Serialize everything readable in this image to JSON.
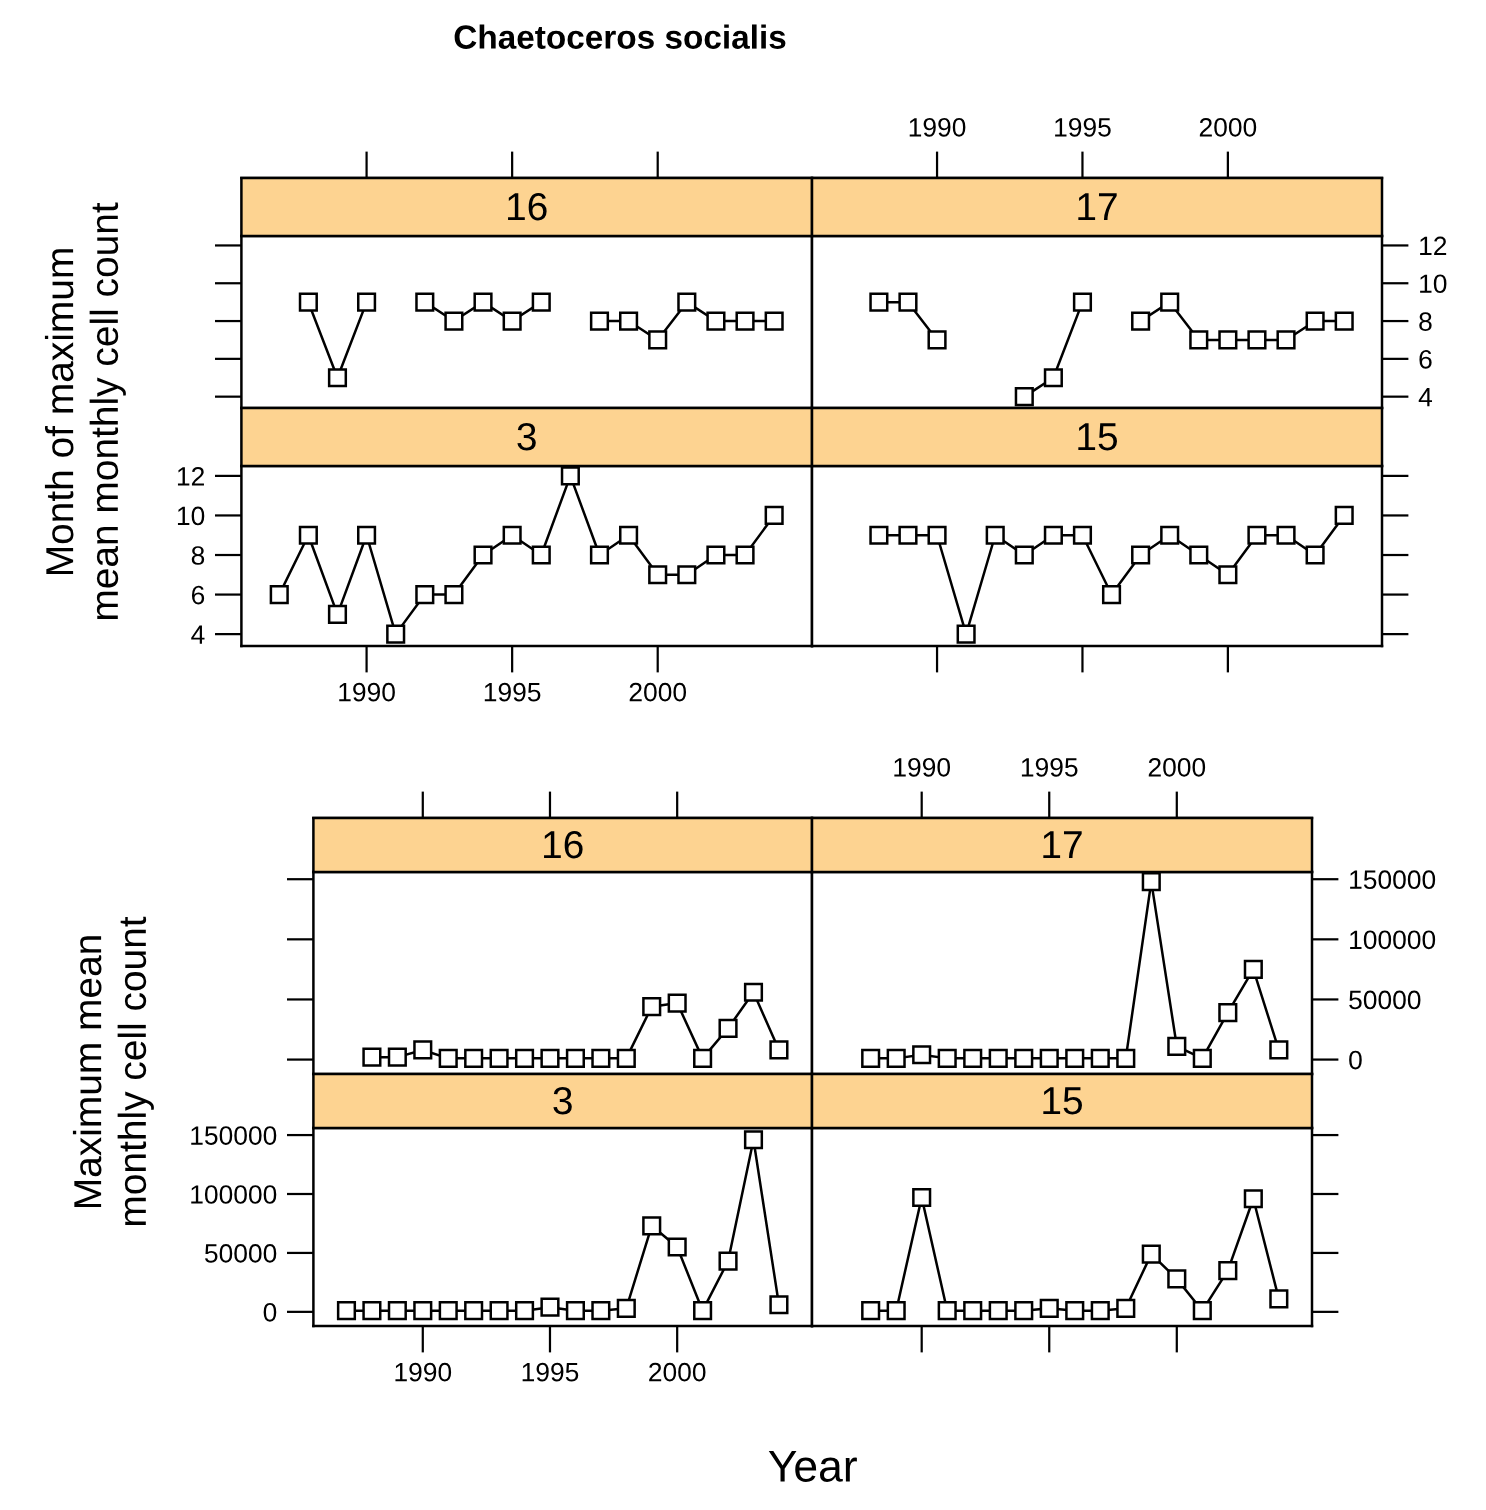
{
  "chart_data": [
    {
      "type": "line",
      "title": "Chaetoceros socialis",
      "subtitle": "16",
      "ylabel": "Month of maximum\nmean monthly cell count",
      "x": [
        1988,
        1989,
        1990,
        1991,
        1992,
        1993,
        1994,
        1995,
        1996,
        1997,
        1998,
        1999,
        2000,
        2001,
        2002,
        2003,
        2004
      ],
      "series": [
        {
          "color": "#000000",
          "values": [
            9,
            5,
            9,
            null,
            9,
            8,
            9,
            8,
            9,
            null,
            8,
            8,
            7,
            9,
            8,
            8,
            8
          ]
        }
      ],
      "xlim": [
        1985.7,
        2005.3
      ],
      "xticks": [
        1990,
        1995,
        2000
      ],
      "ylim": [
        3.4,
        12.5
      ],
      "yticks": [
        4,
        6,
        8,
        10,
        12
      ],
      "tick_labels": false,
      "marker": "square",
      "line_style": "solid",
      "grid": false,
      "legend": false
    },
    {
      "type": "line",
      "subtitle": "17",
      "x": [
        1988,
        1989,
        1990,
        1991,
        1992,
        1993,
        1994,
        1995,
        1996,
        1997,
        1998,
        1999,
        2000,
        2001,
        2002,
        2003,
        2004
      ],
      "series": [
        {
          "color": "#000000",
          "values": [
            9,
            9,
            7,
            null,
            null,
            4,
            5,
            9,
            null,
            8,
            9,
            7,
            7,
            7,
            7,
            8,
            8
          ]
        }
      ],
      "xlim": [
        1985.7,
        2005.3
      ],
      "xticks": [
        1990,
        1995,
        2000
      ],
      "ylim": [
        3.4,
        12.5
      ],
      "yticks": [
        4,
        6,
        8,
        10,
        12
      ],
      "marker": "square",
      "line_style": "solid",
      "grid": false,
      "legend": false
    },
    {
      "type": "line",
      "subtitle": "3",
      "x": [
        1987,
        1988,
        1989,
        1990,
        1991,
        1992,
        1993,
        1994,
        1995,
        1996,
        1997,
        1998,
        1999,
        2000,
        2001,
        2002,
        2003,
        2004
      ],
      "series": [
        {
          "color": "#000000",
          "values": [
            6,
            9,
            5,
            9,
            4,
            6,
            6,
            8,
            9,
            8,
            12,
            8,
            9,
            7,
            7,
            8,
            8,
            10
          ]
        }
      ],
      "xlim": [
        1985.7,
        2005.3
      ],
      "xticks": [
        1990,
        1995,
        2000
      ],
      "ylim": [
        3.4,
        12.5
      ],
      "yticks": [
        4,
        6,
        8,
        10,
        12
      ],
      "marker": "square",
      "line_style": "solid",
      "grid": false,
      "legend": false
    },
    {
      "type": "line",
      "subtitle": "15",
      "x": [
        1988,
        1989,
        1990,
        1991,
        1992,
        1993,
        1994,
        1995,
        1996,
        1997,
        1998,
        1999,
        2000,
        2001,
        2002,
        2003,
        2004
      ],
      "series": [
        {
          "color": "#000000",
          "values": [
            9,
            9,
            9,
            4,
            9,
            8,
            9,
            9,
            6,
            8,
            9,
            8,
            7,
            9,
            9,
            8,
            10
          ]
        }
      ],
      "xlim": [
        1985.7,
        2005.3
      ],
      "xticks": [
        1990,
        1995,
        2000
      ],
      "ylim": [
        3.4,
        12.5
      ],
      "yticks": [
        4,
        6,
        8,
        10,
        12
      ],
      "tick_labels": false,
      "marker": "square",
      "line_style": "solid",
      "grid": false,
      "legend": false
    },
    {
      "type": "line",
      "subtitle": "16",
      "ylabel": "Maximum mean\nmonthly cell count",
      "x": [
        1988,
        1989,
        1990,
        1991,
        1992,
        1993,
        1994,
        1995,
        1996,
        1997,
        1998,
        1999,
        2000,
        2001,
        2002,
        2003,
        2004
      ],
      "series": [
        {
          "color": "#000000",
          "values": [
            2000,
            2000,
            8000,
            1000,
            1000,
            1000,
            1000,
            1000,
            1000,
            1000,
            1000,
            44000,
            47000,
            1000,
            26000,
            56000,
            8000
          ]
        }
      ],
      "xlim": [
        1985.7,
        2005.3
      ],
      "xticks": [
        1990,
        1995,
        2000
      ],
      "ylim": [
        -12000,
        156000
      ],
      "yticks": [
        0,
        50000,
        100000,
        150000
      ],
      "tick_labels": false,
      "marker": "square",
      "line_style": "solid",
      "grid": false,
      "legend": false
    },
    {
      "type": "line",
      "subtitle": "17",
      "x": [
        1988,
        1989,
        1990,
        1991,
        1992,
        1993,
        1994,
        1995,
        1996,
        1997,
        1998,
        1999,
        2000,
        2001,
        2002,
        2003,
        2004
      ],
      "series": [
        {
          "color": "#000000",
          "values": [
            1000,
            1000,
            4000,
            1000,
            1000,
            1000,
            1000,
            1000,
            1000,
            1000,
            1000,
            148000,
            11000,
            1000,
            39000,
            75000,
            8000
          ]
        }
      ],
      "xlim": [
        1985.7,
        2005.3
      ],
      "xticks": [
        1990,
        1995,
        2000
      ],
      "ylim": [
        -12000,
        156000
      ],
      "yticks": [
        0,
        50000,
        100000,
        150000
      ],
      "marker": "square",
      "line_style": "solid",
      "grid": false,
      "legend": false
    },
    {
      "type": "line",
      "subtitle": "3",
      "xlabel": "Year",
      "x": [
        1987,
        1988,
        1989,
        1990,
        1991,
        1992,
        1993,
        1994,
        1995,
        1996,
        1997,
        1998,
        1999,
        2000,
        2001,
        2002,
        2003,
        2004
      ],
      "series": [
        {
          "color": "#000000",
          "values": [
            1000,
            1000,
            1000,
            1000,
            1000,
            1000,
            1000,
            1000,
            4000,
            1000,
            1000,
            3000,
            73000,
            55000,
            1000,
            43000,
            146000,
            6000
          ]
        }
      ],
      "xlim": [
        1985.7,
        2005.3
      ],
      "xticks": [
        1990,
        1995,
        2000
      ],
      "ylim": [
        -12000,
        156000
      ],
      "yticks": [
        0,
        50000,
        100000,
        150000
      ],
      "marker": "square",
      "line_style": "solid",
      "grid": false,
      "legend": false
    },
    {
      "type": "line",
      "subtitle": "15",
      "x": [
        1988,
        1989,
        1990,
        1991,
        1992,
        1993,
        1994,
        1995,
        1996,
        1997,
        1998,
        1999,
        2000,
        2001,
        2002,
        2003,
        2004
      ],
      "series": [
        {
          "color": "#000000",
          "values": [
            1000,
            1000,
            97000,
            1000,
            1000,
            1000,
            1000,
            3000,
            1000,
            1000,
            3000,
            49000,
            28000,
            1000,
            35000,
            96000,
            11000
          ]
        }
      ],
      "xlim": [
        1985.7,
        2005.3
      ],
      "xticks": [
        1990,
        1995,
        2000
      ],
      "ylim": [
        -12000,
        156000
      ],
      "yticks": [
        0,
        50000,
        100000,
        150000
      ],
      "tick_labels": false,
      "marker": "square",
      "line_style": "solid",
      "grid": false,
      "legend": false
    }
  ]
}
